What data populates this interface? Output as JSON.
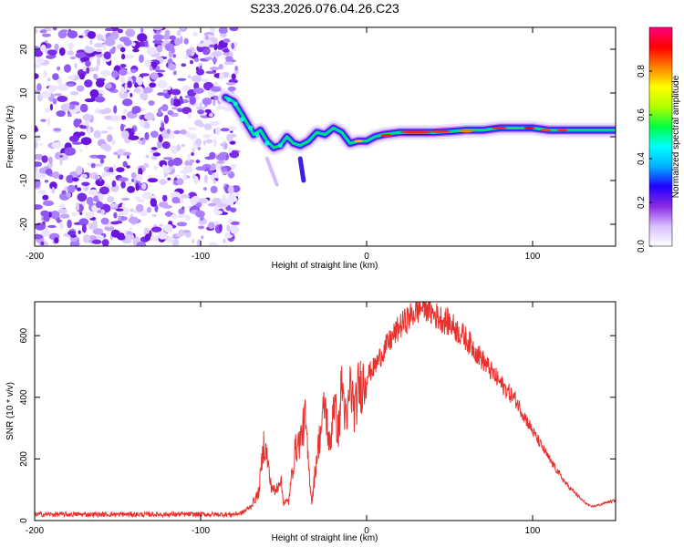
{
  "title": "S233.2026.076.04.26.C23",
  "chart_data": [
    {
      "type": "heatmap",
      "name": "spectrogram",
      "title": "S233.2026.076.04.26.C23",
      "xlabel": "Height of straight line (km)",
      "ylabel": "Frequency (Hz)",
      "xlim": [
        -200,
        150
      ],
      "ylim": [
        -25,
        25
      ],
      "xticks": [
        -200,
        -100,
        0,
        100
      ],
      "yticks": [
        -20,
        -10,
        0,
        10,
        20
      ],
      "noise_region_x": [
        -200,
        -77
      ],
      "ridge": {
        "x": [
          -85,
          -80,
          -75,
          -72,
          -68,
          -64,
          -60,
          -56,
          -52,
          -48,
          -44,
          -40,
          -35,
          -30,
          -25,
          -20,
          -15,
          -10,
          -5,
          0,
          5,
          10,
          20,
          30,
          40,
          50,
          60,
          70,
          80,
          90,
          100,
          110,
          120,
          130,
          140,
          150
        ],
        "freq": [
          9,
          8,
          5,
          3,
          0.5,
          1.5,
          -1,
          -2.5,
          -2,
          0,
          -1.5,
          -2,
          -1,
          1,
          0.5,
          2,
          1,
          -1.5,
          -1,
          -1,
          0,
          0.5,
          1,
          1,
          1,
          1.2,
          1.5,
          1.5,
          2,
          2,
          2,
          1.5,
          1.5,
          1.5,
          1.5,
          1.5
        ]
      },
      "colorbar": {
        "label": "Normalized spectral amplitude",
        "ticks": [
          "0.0",
          "0.2",
          "0.4",
          "0.6",
          "0.8"
        ],
        "range": [
          0,
          1
        ],
        "colors": [
          "#ffffff",
          "#d8c0ff",
          "#8a2be2",
          "#2000ff",
          "#00b0ff",
          "#00ffff",
          "#00ff40",
          "#b0ff00",
          "#ffff00",
          "#ff8000",
          "#ff0000",
          "#ff0080"
        ]
      }
    },
    {
      "type": "line",
      "name": "snr",
      "xlabel": "Height of straight line (km)",
      "ylabel": "SNR (10 * v/v)",
      "xlim": [
        -200,
        150
      ],
      "ylim": [
        0,
        710
      ],
      "xticks": [
        -200,
        -100,
        0,
        100
      ],
      "yticks": [
        0,
        200,
        400,
        600
      ],
      "color": "#e8302c",
      "series": [
        {
          "name": "SNR",
          "x": [
            -200,
            -150,
            -100,
            -80,
            -75,
            -70,
            -65,
            -62,
            -60,
            -58,
            -55,
            -52,
            -50,
            -47,
            -45,
            -43,
            -40,
            -37,
            -35,
            -33,
            -30,
            -28,
            -25,
            -22,
            -20,
            -17,
            -15,
            -12,
            -10,
            -7,
            -5,
            -2,
            0,
            5,
            10,
            20,
            30,
            35,
            40,
            50,
            60,
            70,
            80,
            90,
            100,
            110,
            120,
            130,
            135,
            140,
            145,
            150
          ],
          "values": [
            20,
            20,
            20,
            20,
            25,
            45,
            90,
            250,
            210,
            120,
            90,
            140,
            60,
            60,
            150,
            230,
            260,
            330,
            180,
            60,
            210,
            280,
            380,
            220,
            400,
            280,
            450,
            300,
            440,
            350,
            430,
            450,
            470,
            500,
            550,
            630,
            680,
            700,
            670,
            640,
            590,
            520,
            450,
            390,
            290,
            200,
            120,
            65,
            45,
            50,
            60,
            65
          ]
        }
      ]
    }
  ]
}
